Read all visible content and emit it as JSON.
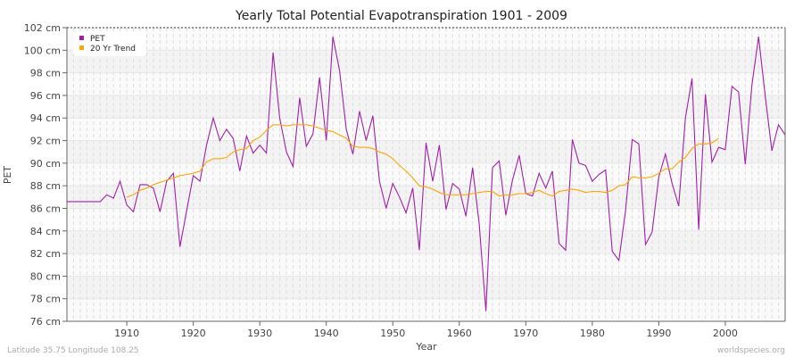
{
  "chart_data": {
    "type": "line",
    "title": "Yearly Total Potential Evapotranspiration 1901 - 2009",
    "xlabel": "Year",
    "ylabel": "PET",
    "xlim": [
      1901,
      2009
    ],
    "ylim": [
      76,
      102
    ],
    "y_unit_suffix": " cm",
    "yticks": [
      76,
      78,
      80,
      82,
      84,
      86,
      88,
      90,
      92,
      94,
      96,
      98,
      100,
      102
    ],
    "ytick_labels": [
      "76 cm",
      "78 cm",
      "80 cm",
      "82 cm",
      "84 cm",
      "86 cm",
      "88 cm",
      "90 cm",
      "92 cm",
      "94 cm",
      "96 cm",
      "98 cm",
      "100 cm",
      "102 cm"
    ],
    "xticks": [
      "1910",
      "1920",
      "1930",
      "1940",
      "1950",
      "1960",
      "1970",
      "1980",
      "1990",
      "2000"
    ],
    "grid": true,
    "legend_position": "top-left",
    "series": [
      {
        "name": "PET",
        "color": "#a020a8",
        "start_year": 1901,
        "values": [
          86.6,
          86.6,
          86.6,
          86.6,
          86.6,
          86.6,
          87.2,
          86.9,
          88.4,
          86.3,
          85.7,
          88.1,
          88.1,
          87.8,
          85.7,
          88.4,
          89.1,
          82.6,
          85.8,
          88.9,
          88.4,
          91.6,
          94.0,
          92.0,
          93.0,
          92.2,
          89.3,
          92.4,
          90.9,
          91.6,
          90.9,
          99.8,
          94.0,
          91.0,
          89.7,
          95.8,
          91.5,
          92.6,
          97.6,
          92.0,
          101.2,
          98.2,
          93.0,
          90.8,
          94.6,
          92.0,
          94.2,
          88.4,
          86.0,
          88.2,
          87.0,
          85.6,
          87.8,
          82.3,
          91.8,
          88.4,
          91.6,
          85.9,
          88.2,
          87.7,
          85.3,
          89.6,
          84.6,
          76.9,
          89.6,
          90.2,
          85.4,
          88.5,
          90.7,
          87.3,
          87.1,
          89.1,
          87.8,
          89.3,
          82.9,
          82.3,
          92.1,
          90.0,
          89.8,
          88.4,
          89.0,
          89.4,
          82.2,
          81.4,
          85.8,
          92.1,
          91.7,
          82.8,
          83.9,
          88.8,
          90.8,
          88.2,
          86.2,
          94.0,
          97.5,
          84.1,
          96.1,
          90.1,
          91.4,
          91.2,
          96.8,
          96.3,
          89.9,
          96.9,
          101.2,
          96.0,
          91.1,
          93.4,
          92.5
        ]
      },
      {
        "name": "20 Yr Trend",
        "color": "#ffa500",
        "start_year": 1910,
        "values": [
          87.0,
          87.2,
          87.6,
          87.8,
          88.1,
          88.3,
          88.5,
          88.7,
          88.9,
          89.0,
          89.1,
          89.3,
          90.1,
          90.4,
          90.4,
          90.5,
          91.0,
          91.2,
          91.3,
          92.0,
          92.3,
          92.9,
          93.4,
          93.4,
          93.3,
          93.4,
          93.4,
          93.4,
          93.3,
          93.1,
          92.9,
          92.8,
          92.5,
          92.2,
          91.5,
          91.4,
          91.4,
          91.3,
          91.0,
          90.8,
          90.4,
          89.8,
          89.3,
          88.7,
          88.0,
          87.9,
          87.7,
          87.4,
          87.2,
          87.2,
          87.2,
          87.2,
          87.3,
          87.4,
          87.5,
          87.5,
          87.1,
          87.2,
          87.2,
          87.3,
          87.3,
          87.4,
          87.6,
          87.3,
          87.1,
          87.5,
          87.6,
          87.7,
          87.6,
          87.4,
          87.5,
          87.5,
          87.4,
          87.6,
          88.0,
          88.1,
          88.8,
          88.7,
          88.7,
          88.8,
          89.1,
          89.5,
          89.5,
          90.1,
          90.5,
          91.3,
          91.7,
          91.7,
          91.8,
          92.2
        ]
      }
    ]
  },
  "footer": {
    "location": "Latitude 35.75 Longitude 108.25",
    "source": "worldspecies.org"
  }
}
